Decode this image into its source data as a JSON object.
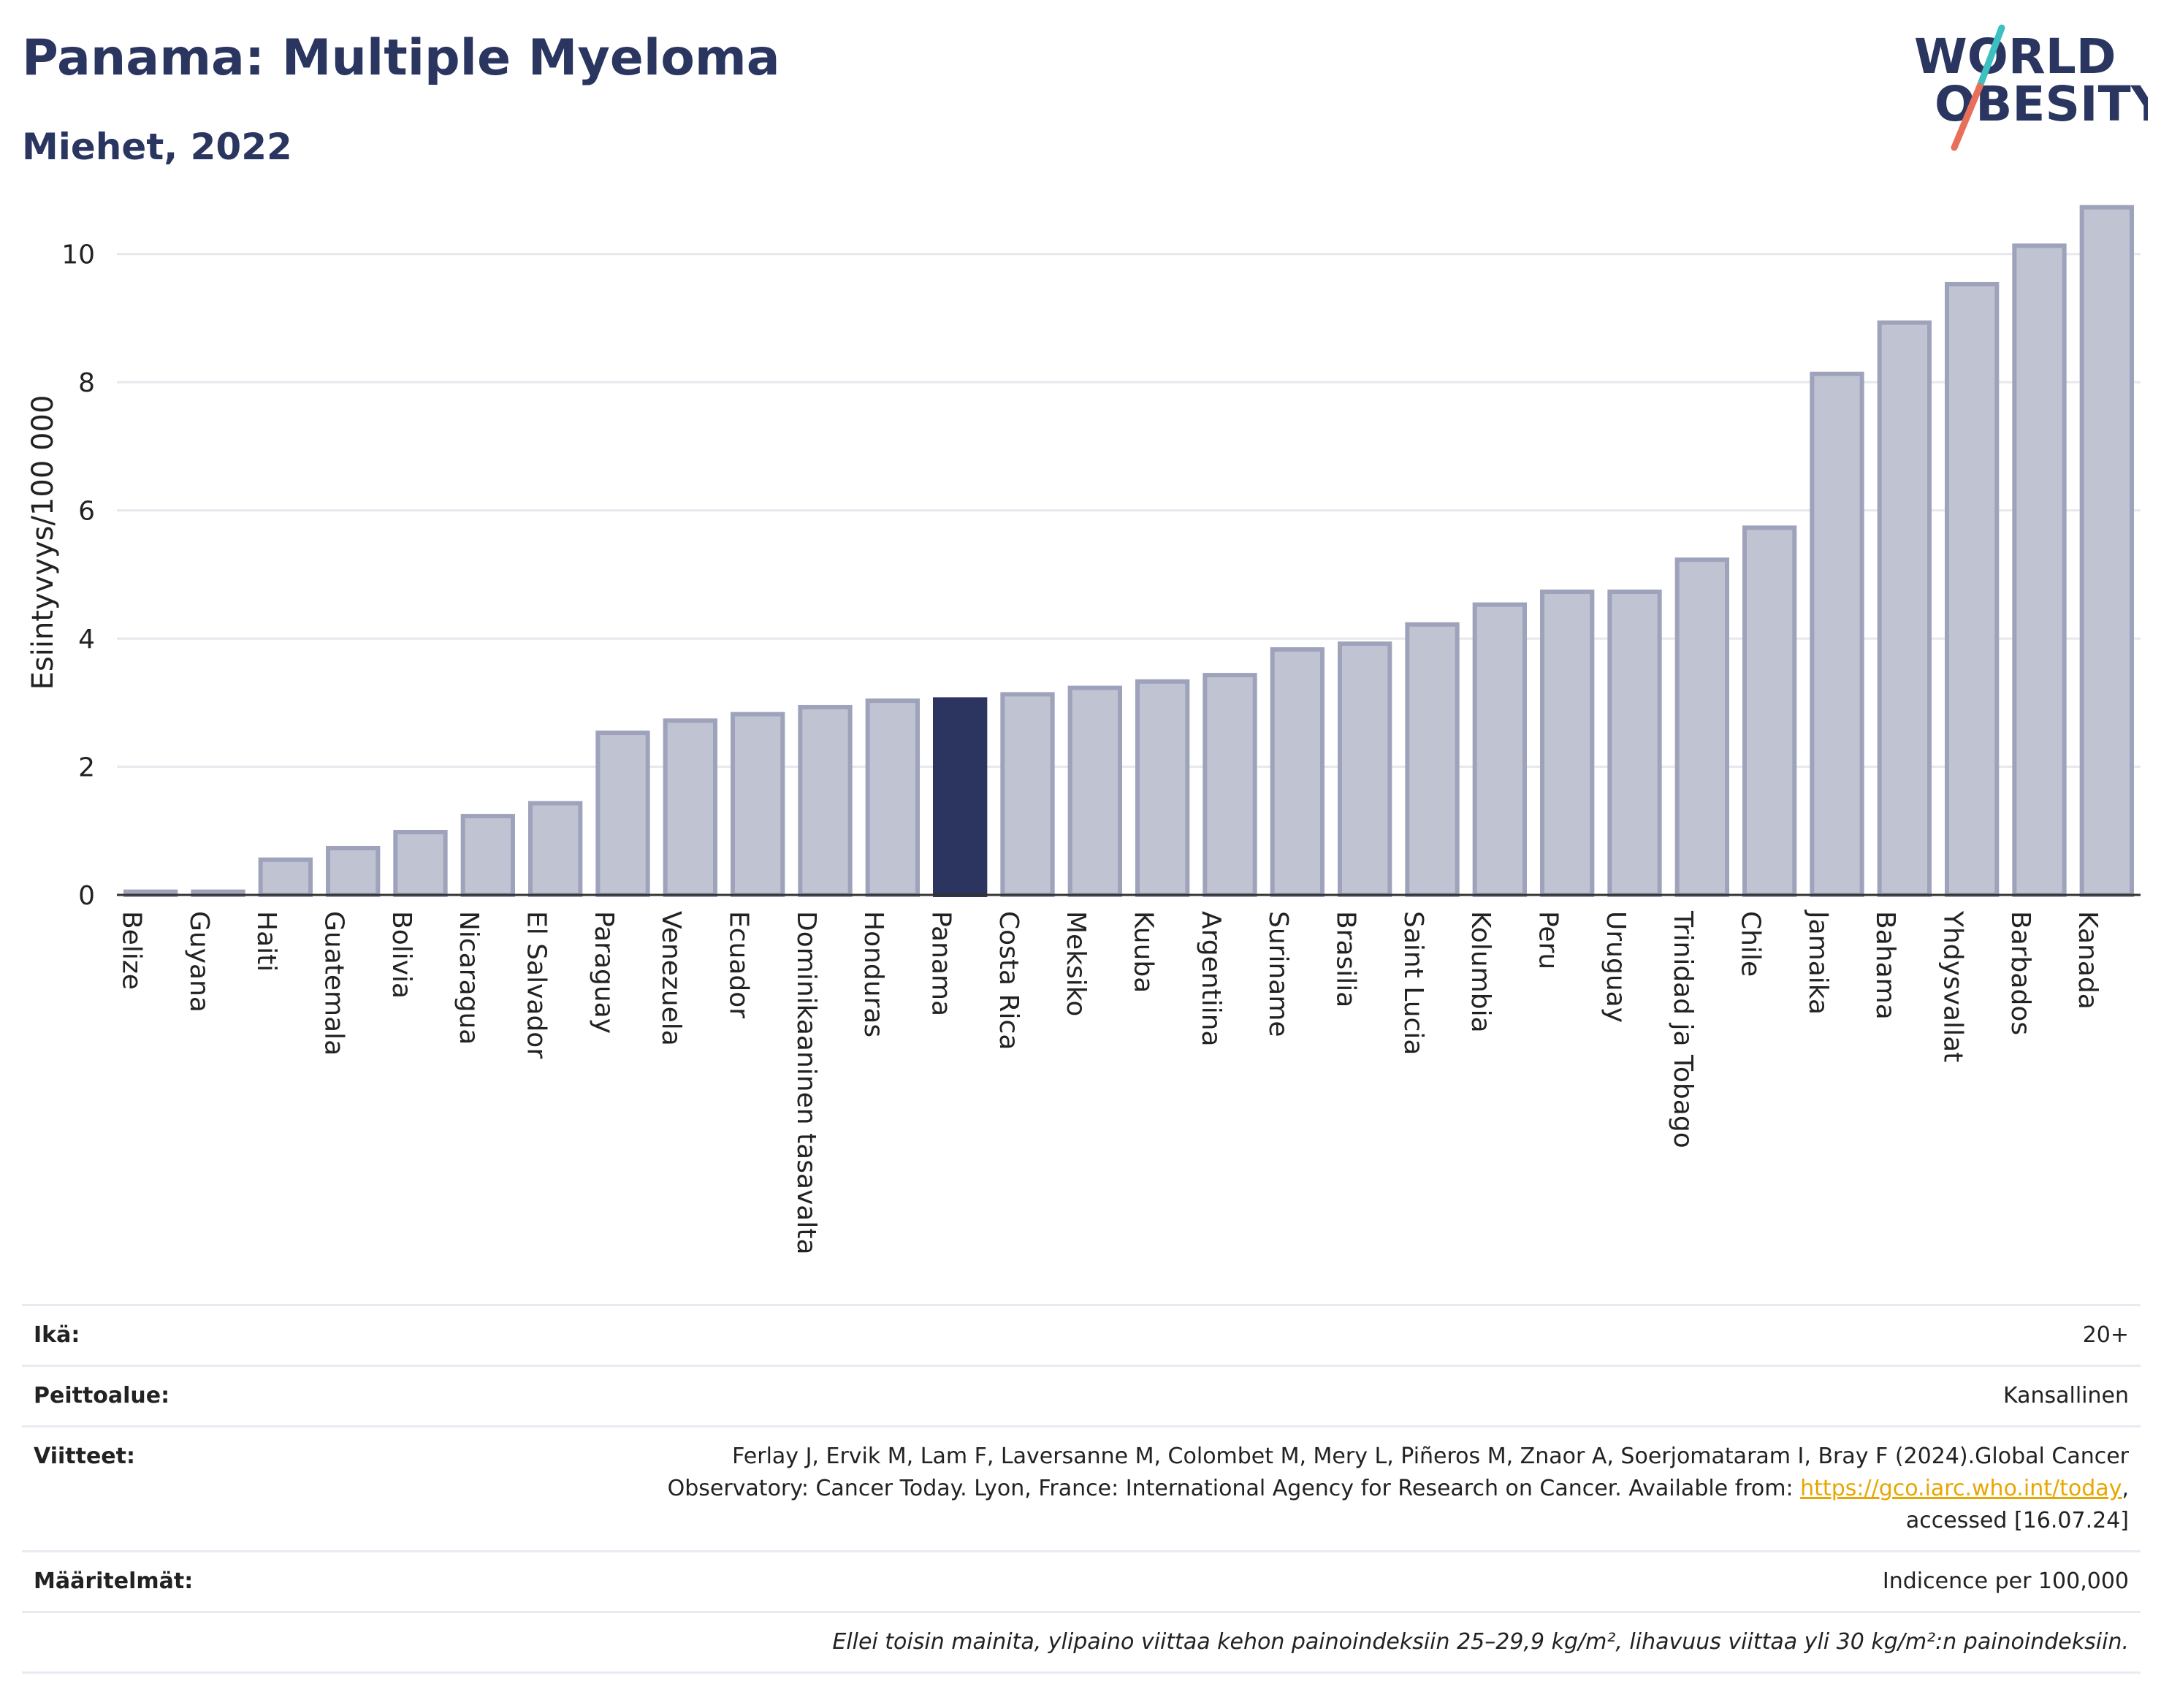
{
  "header": {
    "title": "Panama: Multiple Myeloma",
    "subtitle": "Miehet, 2022"
  },
  "logo": {
    "line1": "WORLD",
    "line2": "OBESITY"
  },
  "chart_data": {
    "type": "bar",
    "ylabel": "Esiintyvyys/100 000",
    "xlabel": "",
    "ylim": [
      0,
      11
    ],
    "yticks": [
      0,
      2,
      4,
      6,
      8,
      10
    ],
    "grid": true,
    "highlight": "Panama",
    "colors": {
      "bar": "#bfc3d2",
      "bar_border": "#9ea3bb",
      "highlight": "#2b355f",
      "grid": "#e6e8ee",
      "axis": "#333333"
    },
    "categories": [
      "Belize",
      "Guyana",
      "Haiti",
      "Guatemala",
      "Bolivia",
      "Nicaragua",
      "El Salvador",
      "Paraguay",
      "Venezuela",
      "Ecuador",
      "Dominikaaninen tasavalta",
      "Honduras",
      "Panama",
      "Costa Rica",
      "Meksiko",
      "Kuuba",
      "Argentiina",
      "Suriname",
      "Brasilia",
      "Saint Lucia",
      "Kolumbia",
      "Peru",
      "Uruguay",
      "Trinidad ja Tobago",
      "Chile",
      "Jamaika",
      "Bahama",
      "Yhdysvallat",
      "Barbados",
      "Kanada"
    ],
    "values": [
      0.05,
      0.05,
      0.55,
      0.73,
      0.98,
      1.23,
      1.43,
      2.53,
      2.72,
      2.82,
      2.93,
      3.03,
      3.05,
      3.13,
      3.23,
      3.33,
      3.43,
      3.83,
      3.92,
      4.22,
      4.53,
      4.73,
      4.73,
      5.23,
      5.73,
      8.13,
      8.93,
      9.53,
      10.13,
      10.73
    ]
  },
  "info": {
    "age_label": "Ikä:",
    "age_value": "20+",
    "coverage_label": "Peittoalue:",
    "coverage_value": "Kansallinen",
    "refs_label": "Viitteet:",
    "refs_line1": "Ferlay J, Ervik M, Lam F, Laversanne M, Colombet M, Mery L, Piñeros M, Znaor A, Soerjomataram I, Bray F (2024).Global Cancer",
    "refs_line2": "Observatory: Cancer Today. Lyon, France: International Agency for Research on Cancer. Available from: ",
    "refs_link": "https://gco.iarc.who.int/today",
    "refs_line2_end": ",",
    "refs_line3": "accessed [16.07.24]",
    "defs_label": "Määritelmät:",
    "defs_value": "Indicence per 100,000",
    "note": "Ellei toisin mainita, ylipaino viittaa kehon painoindeksiin 25–29,9 kg/m², lihavuus viittaa yli 30 kg/m²:n painoindeksiin."
  }
}
